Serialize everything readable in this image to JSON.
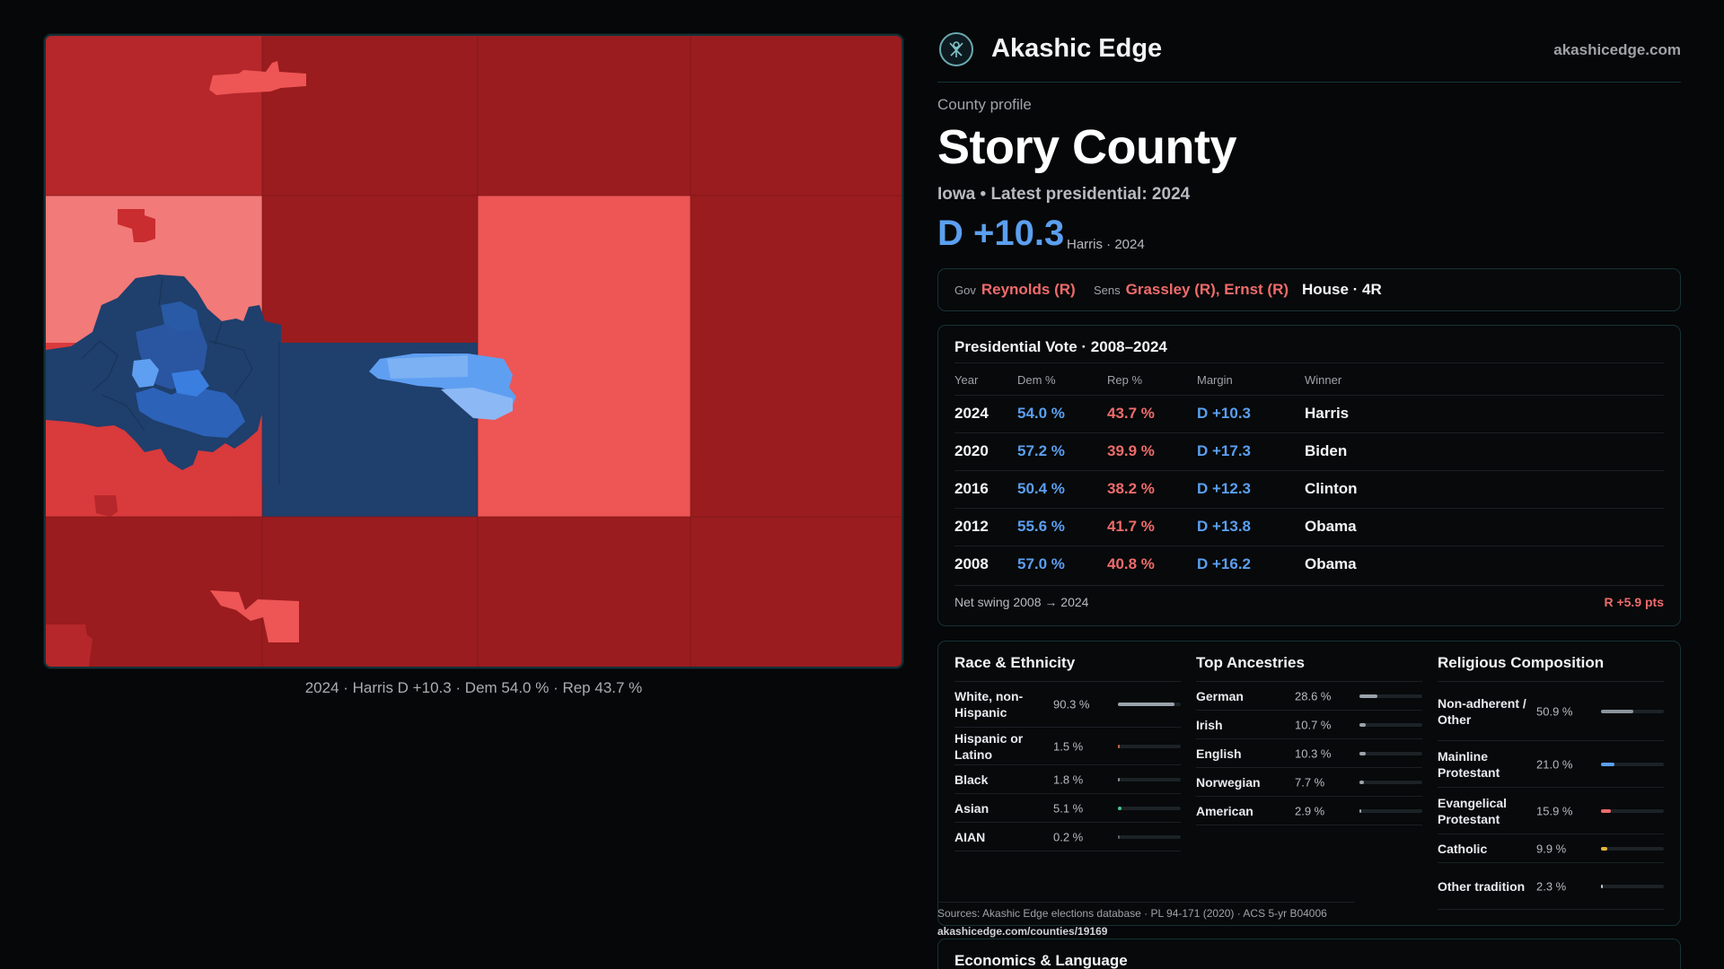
{
  "map": {
    "caption": "2024 · Harris D +10.3 · Dem 54.0 % · Rep 43.7 %"
  },
  "brand": {
    "name": "Akashic Edge",
    "url": "akashicedge.com"
  },
  "profile": {
    "label": "County profile",
    "title": "Story County",
    "subtitle": "Iowa • Latest presidential: 2024",
    "margin": "D +10.3",
    "margin_note": "Harris · 2024"
  },
  "officials": {
    "gov_label": "Gov",
    "gov": "Reynolds (R)",
    "sens_label": "Sens",
    "sens": "Grassley (R), Ernst (R)",
    "house": "House · 4R"
  },
  "presidential": {
    "title": "Presidential Vote · 2008–2024",
    "headers": [
      "Year",
      "Dem %",
      "Rep %",
      "Margin",
      "Winner"
    ],
    "rows": [
      {
        "year": "2024",
        "dem": "54.0 %",
        "rep": "43.7 %",
        "margin": "D +10.3",
        "winner": "Harris"
      },
      {
        "year": "2020",
        "dem": "57.2 %",
        "rep": "39.9 %",
        "margin": "D +17.3",
        "winner": "Biden"
      },
      {
        "year": "2016",
        "dem": "50.4 %",
        "rep": "38.2 %",
        "margin": "D +12.3",
        "winner": "Clinton"
      },
      {
        "year": "2012",
        "dem": "55.6 %",
        "rep": "41.7 %",
        "margin": "D +13.8",
        "winner": "Obama"
      },
      {
        "year": "2008",
        "dem": "57.0 %",
        "rep": "40.8 %",
        "margin": "D +16.2",
        "winner": "Obama"
      }
    ],
    "swing_label": "Net swing 2008 → 2024",
    "swing_value": "R +5.9 pts"
  },
  "race": {
    "title": "Race & Ethnicity",
    "rows": [
      {
        "label": "White, non-Hispanic",
        "value": "90.3 %",
        "pct": 90.3,
        "color": "#9aa3ab"
      },
      {
        "label": "Hispanic or Latino",
        "value": "1.5 %",
        "pct": 1.5,
        "color": "#c0694a"
      },
      {
        "label": "Black",
        "value": "1.8 %",
        "pct": 1.8,
        "color": "#8a9096"
      },
      {
        "label": "Asian",
        "value": "5.1 %",
        "pct": 5.1,
        "color": "#3fc98a"
      },
      {
        "label": "AIAN",
        "value": "0.2 %",
        "pct": 0.2,
        "color": "#5b6066"
      }
    ]
  },
  "ancestry": {
    "title": "Top Ancestries",
    "rows": [
      {
        "label": "German",
        "value": "28.6 %",
        "pct": 28.6,
        "color": "#9aa3ab"
      },
      {
        "label": "Irish",
        "value": "10.7 %",
        "pct": 10.7,
        "color": "#9aa3ab"
      },
      {
        "label": "English",
        "value": "10.3 %",
        "pct": 10.3,
        "color": "#9aa3ab"
      },
      {
        "label": "Norwegian",
        "value": "7.7 %",
        "pct": 7.7,
        "color": "#9aa3ab"
      },
      {
        "label": "American",
        "value": "2.9 %",
        "pct": 2.9,
        "color": "#9aa3ab"
      }
    ]
  },
  "religion": {
    "title": "Religious Composition",
    "rows": [
      {
        "label": "Non-adherent / Other",
        "value": "50.9 %",
        "pct": 50.9,
        "color": "#8a949c"
      },
      {
        "label": "Mainline Protestant",
        "value": "21.0 %",
        "pct": 21.0,
        "color": "#5b9ff0"
      },
      {
        "label": "Evangelical Protestant",
        "value": "15.9 %",
        "pct": 15.9,
        "color": "#ef6b6b"
      },
      {
        "label": "Catholic",
        "value": "9.9 %",
        "pct": 9.9,
        "color": "#e8b43a"
      },
      {
        "label": "Other tradition",
        "value": "2.3 %",
        "pct": 2.3,
        "color": "#c5c9cd"
      }
    ]
  },
  "sources": {
    "text": "Sources: Akashic Edge elections database · PL 94-171 (2020) · ACS 5-yr B04006",
    "url": "akashicedge.com/counties/19169"
  },
  "economics": {
    "title": "Economics & Language"
  },
  "colors": {
    "dem": "#5b9ff0",
    "rep": "#ef6b6b",
    "accent_border": "#163238"
  }
}
